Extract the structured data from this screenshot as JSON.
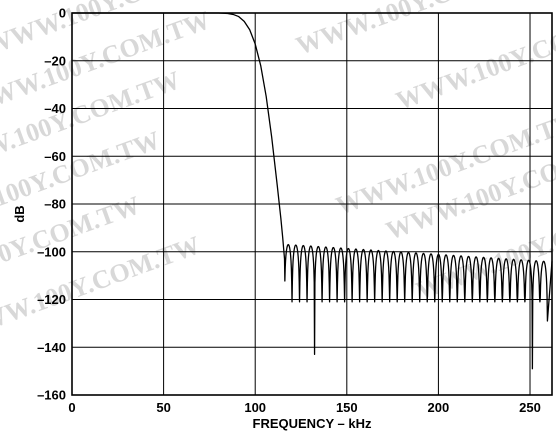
{
  "chart_data": {
    "type": "line",
    "title": "",
    "xlabel": "FREQUENCY – kHz",
    "ylabel": "dB",
    "xlim": [
      0,
      262
    ],
    "ylim": [
      -160,
      0
    ],
    "grid": true,
    "x_ticks": [
      0,
      50,
      100,
      150,
      200,
      250
    ],
    "y_ticks": [
      0,
      -20,
      -40,
      -60,
      -80,
      -100,
      -120,
      -140,
      -160
    ],
    "x_tick_labels": [
      "0",
      "50",
      "100",
      "150",
      "200",
      "250"
    ],
    "y_tick_labels": [
      "0",
      "–20",
      "–40",
      "–60",
      "–80",
      "–100",
      "–120",
      "–140",
      "–160"
    ],
    "series": [
      {
        "color": "#000000",
        "passband": {
          "x": [
            0,
            80
          ],
          "y": [
            0,
            0
          ]
        },
        "transition": {
          "x": [
            80,
            85,
            88,
            91,
            94,
            97,
            100,
            103,
            106,
            109,
            112,
            114,
            115,
            116
          ],
          "y": [
            0,
            -0.2,
            -0.6,
            -1.5,
            -3.5,
            -7,
            -13,
            -22,
            -35,
            -52,
            -72,
            -86,
            -94,
            -103
          ]
        },
        "stopband": {
          "start_khz": 116,
          "end_khz": 262,
          "lobe_width_khz": 4.1,
          "peak_level_start_db": -97,
          "peak_level_end_db": -104,
          "null_depth_db": -121,
          "deep_nulls": [
            {
              "x": 131,
              "y": -143
            },
            {
              "x": 252,
              "y": -149
            },
            {
              "x": 260,
              "y": -129
            }
          ]
        }
      }
    ]
  },
  "watermark": {
    "text": "WWW.100Y.COM.TW",
    "color": "#d8d8d8"
  }
}
